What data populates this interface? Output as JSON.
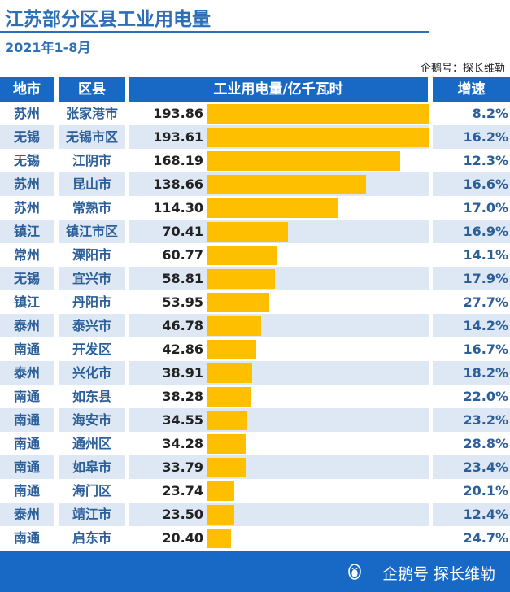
{
  "header": {
    "title": "江苏部分区县工业用电量",
    "subtitle": "2021年1-8月",
    "source": "企鹅号：探长维勒"
  },
  "table": {
    "col_city": "地市",
    "col_county": "区县",
    "col_value": "工业用电量/亿千瓦时",
    "col_growth": "增速"
  },
  "footer": {
    "brand": "企鹅号 探长维勒",
    "icon": "penguin-icon"
  },
  "colors": {
    "accent": "#1769c5",
    "bar": "#fdbf00",
    "stripe": "#dde8f4"
  },
  "chart_data": {
    "type": "bar",
    "title": "江苏部分区县工业用电量",
    "subtitle": "2021年1-8月",
    "ylabel": "工业用电量/亿千瓦时",
    "ylim": [
      0,
      193.86
    ],
    "rows": [
      {
        "city": "苏州",
        "county": "张家港市",
        "value": 193.86,
        "value_label": "193.86",
        "growth": "8.2%"
      },
      {
        "city": "无锡",
        "county": "无锡市区",
        "value": 193.61,
        "value_label": "193.61",
        "growth": "16.2%"
      },
      {
        "city": "无锡",
        "county": "江阴市",
        "value": 168.19,
        "value_label": "168.19",
        "growth": "12.3%"
      },
      {
        "city": "苏州",
        "county": "昆山市",
        "value": 138.66,
        "value_label": "138.66",
        "growth": "16.6%"
      },
      {
        "city": "苏州",
        "county": "常熟市",
        "value": 114.3,
        "value_label": "114.30",
        "growth": "17.0%"
      },
      {
        "city": "镇江",
        "county": "镇江市区",
        "value": 70.41,
        "value_label": "70.41",
        "growth": "16.9%"
      },
      {
        "city": "常州",
        "county": "溧阳市",
        "value": 60.77,
        "value_label": "60.77",
        "growth": "14.1%"
      },
      {
        "city": "无锡",
        "county": "宜兴市",
        "value": 58.81,
        "value_label": "58.81",
        "growth": "17.9%"
      },
      {
        "city": "镇江",
        "county": "丹阳市",
        "value": 53.95,
        "value_label": "53.95",
        "growth": "27.7%"
      },
      {
        "city": "泰州",
        "county": "泰兴市",
        "value": 46.78,
        "value_label": "46.78",
        "growth": "14.2%"
      },
      {
        "city": "南通",
        "county": "开发区",
        "value": 42.86,
        "value_label": "42.86",
        "growth": "16.7%"
      },
      {
        "city": "泰州",
        "county": "兴化市",
        "value": 38.91,
        "value_label": "38.91",
        "growth": "18.2%"
      },
      {
        "city": "南通",
        "county": "如东县",
        "value": 38.28,
        "value_label": "38.28",
        "growth": "22.0%"
      },
      {
        "city": "南通",
        "county": "海安市",
        "value": 34.55,
        "value_label": "34.55",
        "growth": "23.2%"
      },
      {
        "city": "南通",
        "county": "通州区",
        "value": 34.28,
        "value_label": "34.28",
        "growth": "28.8%"
      },
      {
        "city": "南通",
        "county": "如皋市",
        "value": 33.79,
        "value_label": "33.79",
        "growth": "23.4%"
      },
      {
        "city": "南通",
        "county": "海门区",
        "value": 23.74,
        "value_label": "23.74",
        "growth": "20.1%"
      },
      {
        "city": "泰州",
        "county": "靖江市",
        "value": 23.5,
        "value_label": "23.50",
        "growth": "12.4%"
      },
      {
        "city": "南通",
        "county": "启东市",
        "value": 20.4,
        "value_label": "20.40",
        "growth": "24.7%"
      }
    ]
  }
}
